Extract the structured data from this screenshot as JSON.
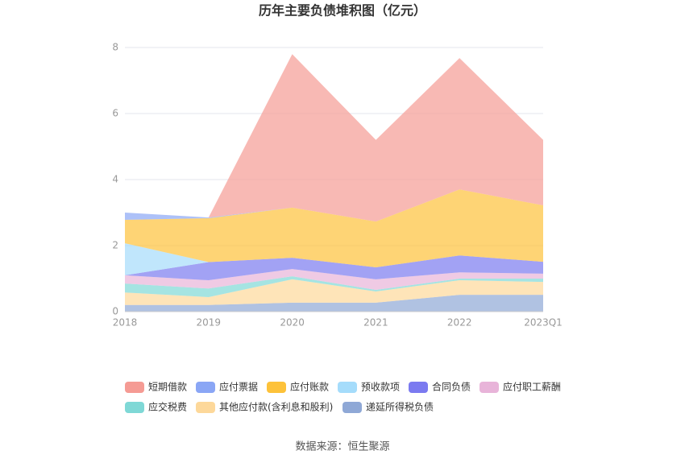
{
  "chart_data": {
    "type": "stacked_area",
    "title": "历年主要负债堆积图（亿元）",
    "source": "数据来源：恒生聚源",
    "categories": [
      "2018",
      "2019",
      "2020",
      "2021",
      "2022",
      "2023Q1"
    ],
    "ylim": [
      0,
      8
    ],
    "yticks": [
      0,
      2,
      4,
      6,
      8
    ],
    "grid": true,
    "series": [
      {
        "name": "递延所得税负债",
        "color": "#8fa8d6",
        "values": [
          0.2,
          0.2,
          0.27,
          0.27,
          0.51,
          0.51
        ]
      },
      {
        "name": "其他应付款(含利息和股利)",
        "color": "#fdd89a",
        "values": [
          0.38,
          0.24,
          0.71,
          0.34,
          0.44,
          0.39
        ]
      },
      {
        "name": "应交税费",
        "color": "#7fd8d6",
        "values": [
          0.27,
          0.26,
          0.09,
          0.05,
          0.05,
          0.1
        ]
      },
      {
        "name": "应付职工薪酬",
        "color": "#e8b4d9",
        "values": [
          0.25,
          0.25,
          0.22,
          0.32,
          0.19,
          0.15
        ]
      },
      {
        "name": "合同负债",
        "color": "#7b7af0",
        "values": [
          0,
          0.55,
          0.34,
          0.36,
          0.51,
          0.36
        ]
      },
      {
        "name": "预收款项",
        "color": "#a5dcfb",
        "values": [
          0.97,
          0,
          0,
          0,
          0,
          0
        ]
      },
      {
        "name": "应付账款",
        "color": "#fdc23a",
        "values": [
          0.71,
          1.33,
          1.52,
          1.39,
          2.0,
          1.71
        ]
      },
      {
        "name": "应付票据",
        "color": "#8aa6f5",
        "values": [
          0.22,
          0.02,
          0,
          0,
          0,
          0
        ]
      },
      {
        "name": "短期借款",
        "color": "#f59b94",
        "values": [
          0,
          0,
          4.65,
          2.47,
          3.98,
          1.98
        ]
      }
    ]
  }
}
